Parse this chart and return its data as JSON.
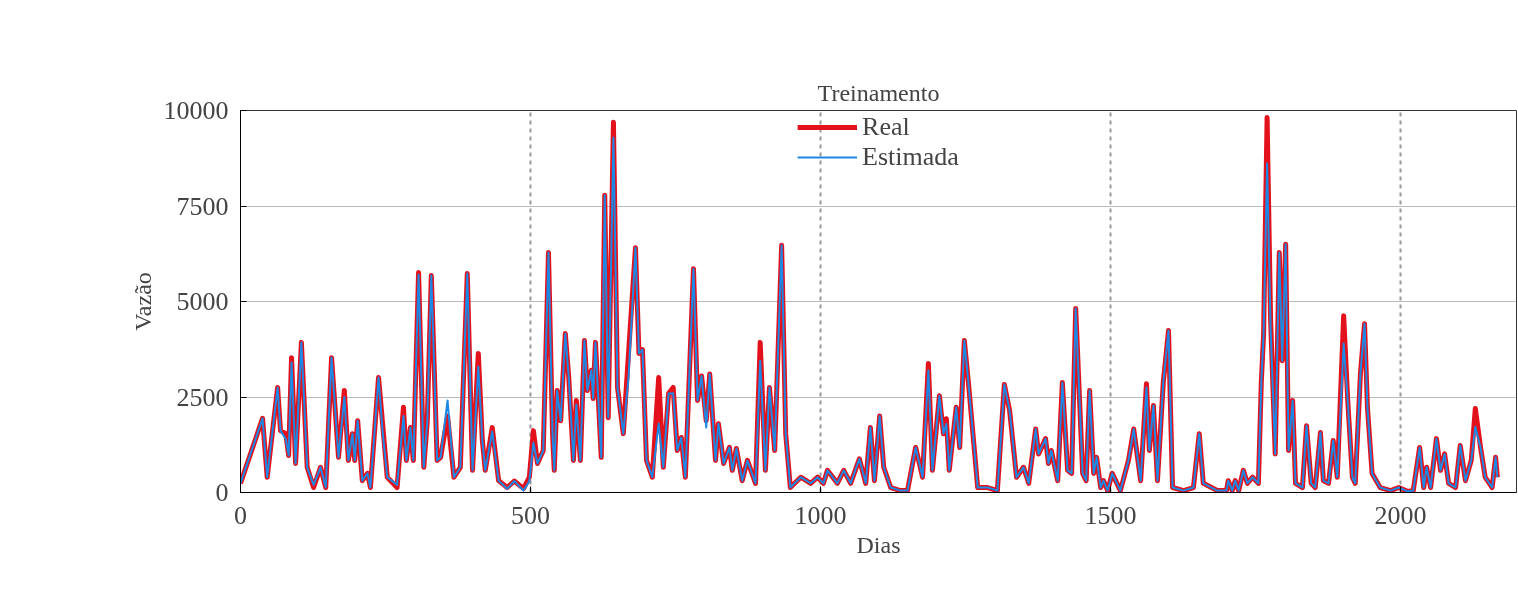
{
  "chart_data": {
    "type": "line",
    "title": "Treinamento",
    "xlabel": "Dias",
    "ylabel": "Vazão",
    "xlim": [
      0,
      2200
    ],
    "xticks": [
      0,
      500,
      1000,
      1500,
      2000
    ],
    "ylim": [
      0,
      10000
    ],
    "yticks": [
      0,
      2500,
      5000,
      7500,
      10000
    ],
    "grid": true,
    "legend": "top",
    "line_style": "solid",
    "marker": "none",
    "x": [
      0,
      38,
      46,
      64,
      69,
      78,
      83,
      88,
      95,
      105,
      115,
      126,
      138,
      147,
      157,
      169,
      179,
      186,
      193,
      197,
      202,
      210,
      219,
      224,
      238,
      245,
      253,
      270,
      281,
      286,
      293,
      298,
      307,
      316,
      322,
      329,
      339,
      345,
      357,
      368,
      379,
      391,
      400,
      410,
      417,
      422,
      434,
      445,
      460,
      472,
      488,
      498,
      505,
      512,
      522,
      531,
      538,
      541,
      546,
      552,
      560,
      566,
      574,
      579,
      586,
      593,
      598,
      605,
      608,
      612,
      622,
      628,
      634,
      643,
      650,
      660,
      669,
      681,
      687,
      693,
      700,
      710,
      721,
      729,
      738,
      746,
      753,
      760,
      767,
      781,
      788,
      795,
      803,
      809,
      819,
      824,
      833,
      843,
      848,
      855,
      865,
      874,
      888,
      896,
      905,
      912,
      921,
      933,
      940,
      948,
      966,
      983,
      995,
      1005,
      1012,
      1029,
      1040,
      1052,
      1067,
      1078,
      1086,
      1093,
      1102,
      1109,
      1121,
      1138,
      1150,
      1164,
      1176,
      1186,
      1193,
      1205,
      1212,
      1217,
      1222,
      1234,
      1240,
      1248,
      1255,
      1271,
      1288,
      1305,
      1317,
      1326,
      1338,
      1350,
      1359,
      1371,
      1376,
      1388,
      1393,
      1398,
      1409,
      1417,
      1426,
      1433,
      1440,
      1452,
      1458,
      1464,
      1471,
      1476,
      1483,
      1488,
      1495,
      1503,
      1517,
      1531,
      1540,
      1552,
      1562,
      1567,
      1574,
      1581,
      1591,
      1600,
      1607,
      1626,
      1643,
      1653,
      1660,
      1684,
      1700,
      1703,
      1710,
      1715,
      1721,
      1729,
      1736,
      1745,
      1755,
      1760,
      1764,
      1770,
      1776,
      1784,
      1791,
      1796,
      1802,
      1807,
      1814,
      1819,
      1831,
      1838,
      1846,
      1853,
      1862,
      1867,
      1876,
      1884,
      1891,
      1902,
      1909,
      1917,
      1922,
      1931,
      1938,
      1943,
      1951,
      1965,
      1983,
      1997,
      2012,
      2022,
      2033,
      2040,
      2045,
      2052,
      2062,
      2069,
      2076,
      2083,
      2095,
      2103,
      2112,
      2122,
      2129,
      2138,
      2146,
      2158,
      2164,
      2167
    ],
    "series": [
      {
        "name": "Real",
        "color": "#e3111b",
        "values": [
          240,
          1940,
          400,
          2750,
          1620,
          1540,
          970,
          3530,
          760,
          3930,
          660,
          130,
          660,
          130,
          3530,
          920,
          2670,
          840,
          1540,
          840,
          1880,
          310,
          500,
          130,
          3010,
          1800,
          400,
          130,
          2230,
          840,
          1700,
          840,
          5760,
          660,
          1860,
          5680,
          840,
          920,
          2000,
          400,
          660,
          5730,
          580,
          3640,
          1360,
          580,
          1700,
          310,
          130,
          300,
          100,
          400,
          1620,
          760,
          1100,
          6280,
          1540,
          580,
          2670,
          1880,
          4160,
          3010,
          840,
          2410,
          840,
          3980,
          2670,
          3200,
          2460,
          3930,
          920,
          7780,
          1960,
          9690,
          2750,
          1540,
          3640,
          6410,
          3640,
          3740,
          840,
          400,
          3010,
          660,
          2590,
          2750,
          1100,
          1440,
          400,
          5860,
          2410,
          3050,
          1880,
          3100,
          840,
          1800,
          760,
          1180,
          580,
          1150,
          310,
          840,
          240,
          3930,
          580,
          2750,
          1100,
          6470,
          1540,
          130,
          400,
          240,
          400,
          240,
          580,
          240,
          580,
          240,
          880,
          240,
          1700,
          310,
          2000,
          660,
          130,
          50,
          50,
          1180,
          400,
          3380,
          580,
          2530,
          1540,
          1930,
          580,
          2230,
          1180,
          3980,
          2880,
          130,
          130,
          50,
          2830,
          2150,
          400,
          660,
          240,
          1660,
          1010,
          1410,
          760,
          1100,
          310,
          2880,
          580,
          500,
          4820,
          500,
          310,
          2670,
          500,
          920,
          130,
          310,
          50,
          500,
          50,
          840,
          1660,
          310,
          2850,
          1100,
          2280,
          310,
          2880,
          4240,
          130,
          50,
          130,
          1540,
          240,
          50,
          50,
          310,
          50,
          310,
          50,
          580,
          240,
          400,
          240,
          2880,
          4160,
          9820,
          4550,
          1010,
          6280,
          3450,
          6500,
          1100,
          2410,
          240,
          130,
          1750,
          240,
          130,
          1570,
          310,
          240,
          1360,
          400,
          4630,
          2410,
          400,
          240,
          3130,
          4420,
          2230,
          500,
          130,
          50,
          130,
          30,
          50,
          1180,
          130,
          660,
          130,
          1410,
          580,
          1010,
          240,
          130,
          1230,
          310,
          840,
          2200,
          1180,
          400,
          130,
          920,
          400
        ]
      },
      {
        "name": "Estimada",
        "color": "#1e88e5",
        "values": [
          240,
          1940,
          400,
          2750,
          1620,
          1400,
          970,
          3400,
          760,
          3930,
          660,
          200,
          660,
          130,
          3530,
          920,
          2500,
          840,
          1540,
          840,
          1880,
          310,
          500,
          130,
          3010,
          1600,
          400,
          200,
          2000,
          840,
          1700,
          840,
          5700,
          660,
          1860,
          5680,
          840,
          920,
          2410,
          400,
          660,
          5730,
          580,
          3300,
          1360,
          580,
          1600,
          310,
          100,
          300,
          50,
          300,
          1300,
          760,
          1100,
          6280,
          1540,
          580,
          2670,
          1880,
          4160,
          3010,
          840,
          2300,
          840,
          3980,
          2670,
          3200,
          2460,
          3930,
          920,
          7780,
          1960,
          9290,
          2750,
          1540,
          3010,
          6410,
          3640,
          3740,
          840,
          400,
          1800,
          660,
          2590,
          2600,
          1100,
          1440,
          400,
          5860,
          2410,
          3050,
          1700,
          3100,
          840,
          1800,
          760,
          1180,
          580,
          1150,
          310,
          840,
          240,
          3450,
          580,
          2750,
          1100,
          6470,
          1540,
          130,
          400,
          240,
          400,
          240,
          580,
          240,
          580,
          240,
          880,
          240,
          1700,
          310,
          2000,
          660,
          130,
          50,
          50,
          1180,
          400,
          3200,
          580,
          2530,
          1540,
          1800,
          580,
          2230,
          1180,
          3980,
          2880,
          130,
          130,
          50,
          2830,
          2150,
          400,
          660,
          240,
          1660,
          1010,
          1410,
          760,
          1100,
          310,
          2880,
          580,
          500,
          4820,
          500,
          310,
          2670,
          500,
          920,
          130,
          310,
          50,
          500,
          50,
          840,
          1660,
          310,
          2750,
          1100,
          2280,
          310,
          2880,
          4240,
          130,
          50,
          130,
          1540,
          240,
          50,
          50,
          310,
          50,
          310,
          50,
          580,
          240,
          400,
          240,
          2880,
          4160,
          8610,
          4300,
          1010,
          6280,
          3450,
          6500,
          1100,
          2410,
          240,
          130,
          1750,
          240,
          130,
          1570,
          310,
          240,
          1360,
          400,
          3900,
          2410,
          400,
          240,
          3130,
          4420,
          2230,
          500,
          130,
          50,
          130,
          30,
          50,
          1180,
          130,
          660,
          130,
          1410,
          580,
          1010,
          240,
          130,
          1230,
          310,
          840,
          1720,
          1180,
          400,
          130,
          920,
          400
        ]
      }
    ]
  }
}
